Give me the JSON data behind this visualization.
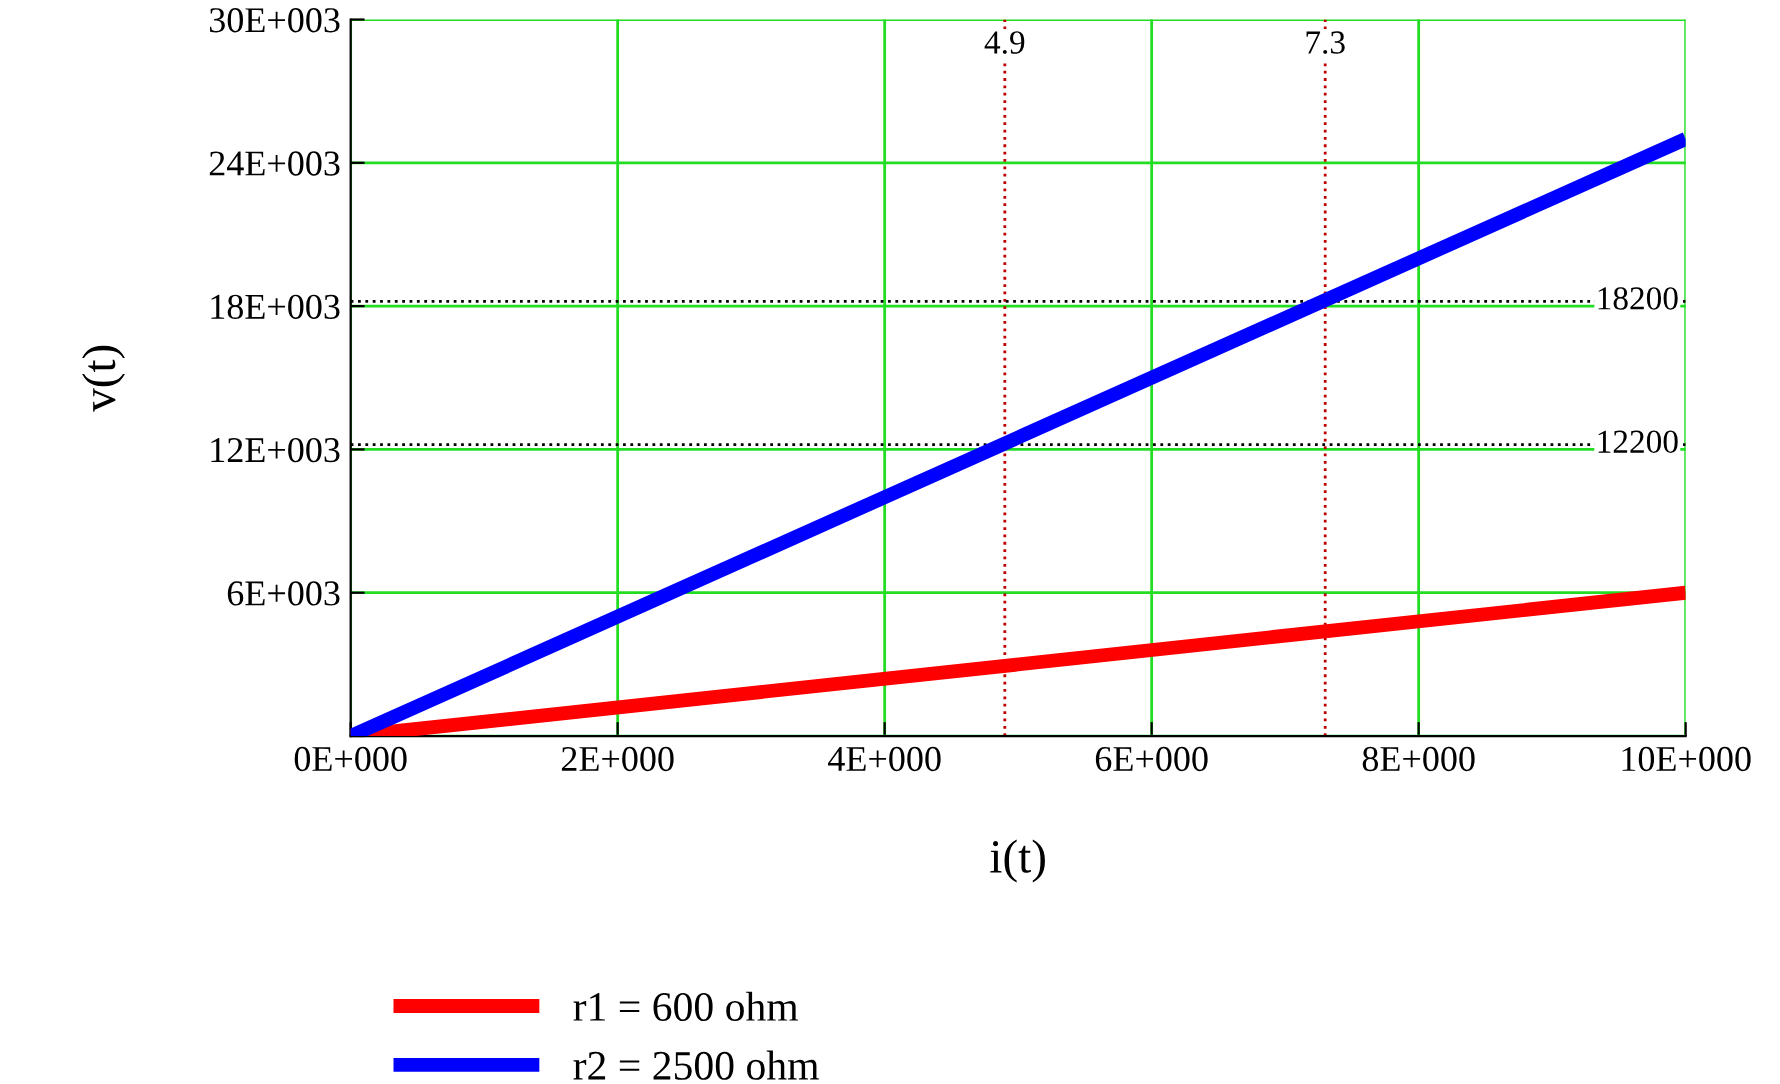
{
  "chart_data": {
    "type": "line",
    "xlabel": "i(t)",
    "ylabel": "v(t)",
    "x": [
      0,
      10
    ],
    "series": [
      {
        "name": "r1 = 600 ohm",
        "color": "#ff0000",
        "values": [
          0,
          6000
        ]
      },
      {
        "name": "r2 = 2500 ohm",
        "color": "#0000ff",
        "values": [
          0,
          25000
        ]
      }
    ],
    "xlim": [
      0,
      10
    ],
    "xticks": [
      {
        "value": 0,
        "label": "0E+000"
      },
      {
        "value": 2,
        "label": "2E+000"
      },
      {
        "value": 4,
        "label": "4E+000"
      },
      {
        "value": 6,
        "label": "6E+000"
      },
      {
        "value": 8,
        "label": "8E+000"
      },
      {
        "value": 10,
        "label": "10E+000"
      }
    ],
    "ylim": [
      0,
      30000
    ],
    "yticks": [
      {
        "value": 0,
        "label": null
      },
      {
        "value": 6000,
        "label": "6E+003"
      },
      {
        "value": 12000,
        "label": "12E+003"
      },
      {
        "value": 18000,
        "label": "18E+003"
      },
      {
        "value": 24000,
        "label": "24E+003"
      },
      {
        "value": 30000,
        "label": "30E+003"
      }
    ],
    "ref_lines": [
      {
        "axis": "x",
        "value": 4.9,
        "label": "4.9",
        "color": "#c00000",
        "line_style": "dotted"
      },
      {
        "axis": "x",
        "value": 7.3,
        "label": "7.3",
        "color": "#c00000",
        "line_style": "dotted"
      },
      {
        "axis": "y",
        "value": 18200,
        "label": "18200",
        "color": "#000000",
        "line_style": "dotted"
      },
      {
        "axis": "y",
        "value": 12200,
        "label": "12200",
        "color": "#000000",
        "line_style": "dotted"
      }
    ],
    "grid": true,
    "legend": "bottom left",
    "marker": "none",
    "line_style": "solid"
  }
}
